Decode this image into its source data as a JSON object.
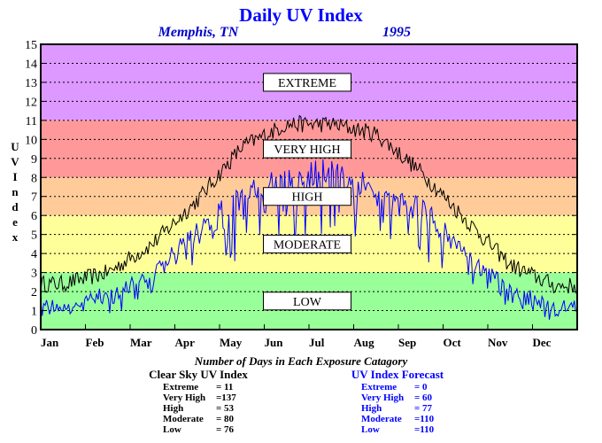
{
  "chart_data": {
    "type": "line",
    "title": "Daily UV Index",
    "location": "Memphis, TN",
    "year": "1995",
    "ylabel": "UV Index",
    "ylim": [
      0,
      15
    ],
    "yticks": [
      0,
      1,
      2,
      3,
      4,
      5,
      6,
      7,
      8,
      9,
      10,
      11,
      12,
      13,
      14,
      15
    ],
    "months": [
      "Jan",
      "Feb",
      "Mar",
      "Apr",
      "May",
      "Jun",
      "Jul",
      "Aug",
      "Sep",
      "Oct",
      "Nov",
      "Dec"
    ],
    "grid": true,
    "bands": [
      {
        "label": "LOW",
        "from": 0,
        "to": 3,
        "color": "#99ff99"
      },
      {
        "label": "MODERATE",
        "from": 3,
        "to": 6,
        "color": "#ffff99"
      },
      {
        "label": "HIGH",
        "from": 6,
        "to": 8,
        "color": "#ffcc99"
      },
      {
        "label": "VERY HIGH",
        "from": 8,
        "to": 11,
        "color": "#ff9999"
      },
      {
        "label": "EXTREME",
        "from": 11,
        "to": 15,
        "color": "#dd99ff"
      }
    ],
    "series": [
      {
        "name": "Clear Sky UV Index",
        "color": "#000000",
        "monthly_values": [
          2.4,
          3.0,
          4.5,
          6.8,
          9.6,
          10.8,
          10.8,
          10.3,
          8.3,
          5.8,
          3.4,
          2.3
        ]
      },
      {
        "name": "UV Index Forecast",
        "color": "#0000ff",
        "monthly_values": [
          1.4,
          2.0,
          3.2,
          5.5,
          7.5,
          8.5,
          8.8,
          8.0,
          6.8,
          4.5,
          2.2,
          1.3
        ]
      }
    ]
  },
  "summary": {
    "caption": "Number of Days in Each Exposure Catagory",
    "clear_sky": {
      "title": "Clear Sky UV Index",
      "rows": [
        {
          "label": "Extreme",
          "value": "= 11"
        },
        {
          "label": "Very High",
          "value": "=137"
        },
        {
          "label": "High",
          "value": "= 53"
        },
        {
          "label": "Moderate",
          "value": "= 80"
        },
        {
          "label": "Low",
          "value": "= 76"
        }
      ]
    },
    "forecast": {
      "title": "UV Index Forecast",
      "rows": [
        {
          "label": "Extreme",
          "value": "= 0"
        },
        {
          "label": "Very High",
          "value": "= 60"
        },
        {
          "label": "High",
          "value": "= 77"
        },
        {
          "label": "Moderate",
          "value": "=110"
        },
        {
          "label": "Low",
          "value": "=110"
        }
      ]
    }
  }
}
